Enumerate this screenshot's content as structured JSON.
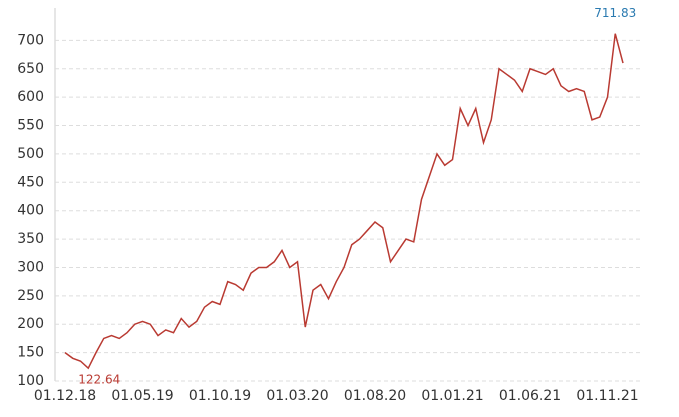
{
  "chart_data": {
    "type": "line",
    "categories": [
      "01.12.18",
      null,
      null,
      null,
      null,
      null,
      null,
      null,
      null,
      null,
      "01.05.19",
      null,
      null,
      null,
      null,
      null,
      null,
      null,
      null,
      null,
      "01.10.19",
      null,
      null,
      null,
      null,
      null,
      null,
      null,
      null,
      null,
      "01.03.20",
      null,
      null,
      null,
      null,
      null,
      null,
      null,
      null,
      null,
      "01.08.20",
      null,
      null,
      null,
      null,
      null,
      null,
      null,
      null,
      null,
      "01.01.21",
      null,
      null,
      null,
      null,
      null,
      null,
      null,
      null,
      null,
      "01.06.21",
      null,
      null,
      null,
      null,
      null,
      null,
      null,
      null,
      null,
      "01.11.21",
      null,
      null
    ],
    "series": [
      {
        "color": "#b93a32",
        "values": [
          150,
          140,
          135,
          122.64,
          150,
          175,
          180,
          175,
          185,
          200,
          205,
          200,
          180,
          190,
          185,
          210,
          195,
          205,
          230,
          240,
          235,
          275,
          270,
          260,
          290,
          300,
          300,
          310,
          330,
          300,
          310,
          195,
          260,
          270,
          245,
          275,
          300,
          340,
          350,
          365,
          380,
          370,
          310,
          330,
          350,
          345,
          420,
          460,
          500,
          480,
          490,
          580,
          550,
          580,
          520,
          560,
          650,
          640,
          630,
          610,
          650,
          645,
          640,
          650,
          620,
          610,
          615,
          610,
          560,
          565,
          600,
          711.83,
          660
        ],
        "value_labels": [
          null,
          null,
          null,
          "122.64",
          null,
          null,
          null,
          null,
          null,
          null,
          null,
          null,
          null,
          null,
          null,
          null,
          null,
          null,
          null,
          null,
          null,
          null,
          null,
          null,
          null,
          null,
          null,
          null,
          null,
          null,
          null,
          null,
          null,
          null,
          null,
          null,
          null,
          null,
          null,
          null,
          null,
          null,
          null,
          null,
          null,
          null,
          null,
          null,
          null,
          null,
          null,
          null,
          null,
          null,
          null,
          null,
          null,
          null,
          null,
          null,
          null,
          null,
          null,
          null,
          null,
          null,
          null,
          null,
          null,
          null,
          null,
          "711.83",
          null
        ]
      }
    ],
    "ylim": [
      100,
      750
    ],
    "yticks": [
      100,
      150,
      200,
      250,
      300,
      350,
      400,
      450,
      500,
      550,
      600,
      650,
      700
    ],
    "grid": true
  }
}
